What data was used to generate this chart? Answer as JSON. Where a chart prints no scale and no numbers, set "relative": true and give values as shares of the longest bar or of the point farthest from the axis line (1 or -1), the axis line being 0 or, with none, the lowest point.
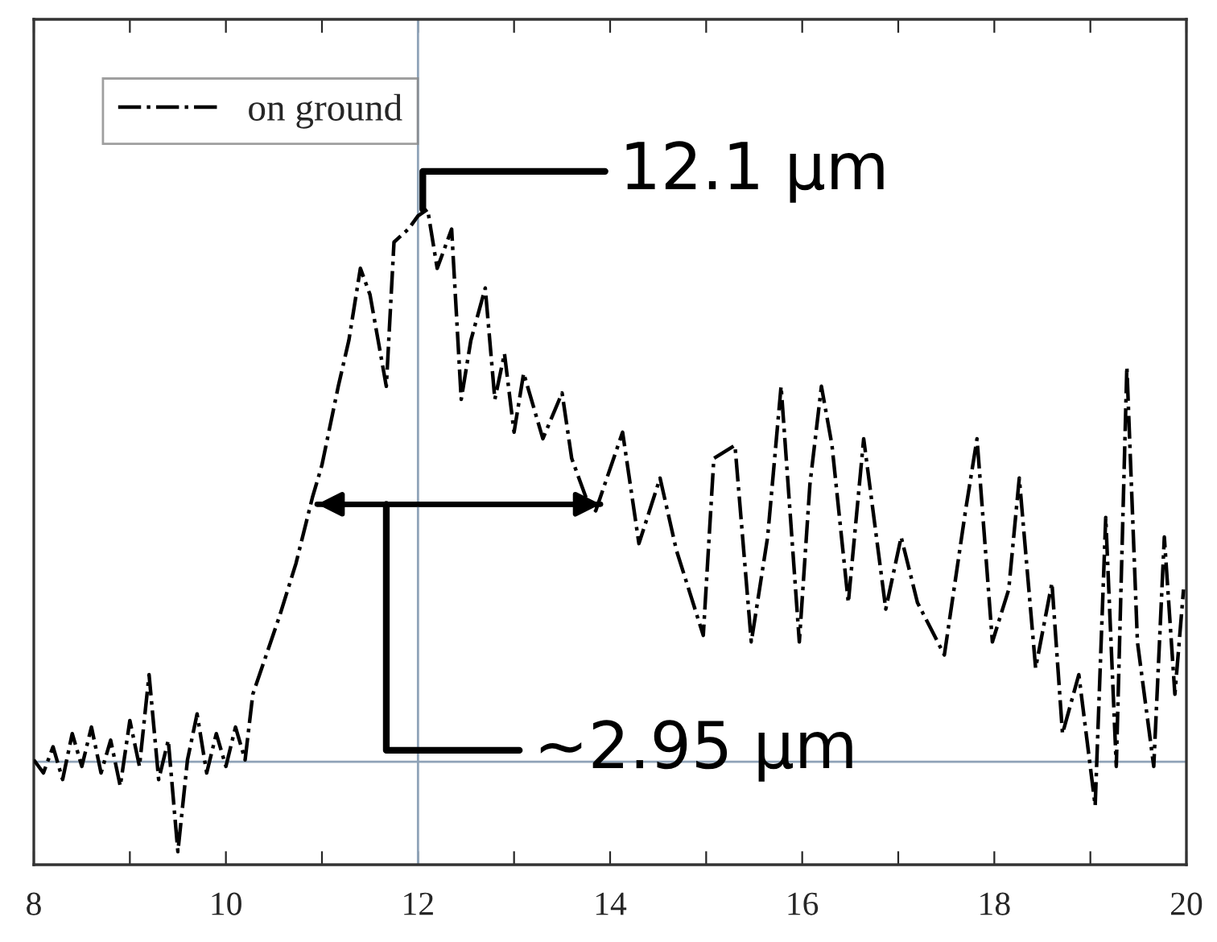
{
  "chart_data": {
    "type": "line",
    "relative": true,
    "xlim": [
      8,
      20
    ],
    "xticks": [
      8,
      {
        "value": 9,
        "label": null
      },
      10,
      {
        "value": 11,
        "label": null
      },
      12,
      {
        "value": 13,
        "label": null
      },
      14,
      {
        "value": 15,
        "label": null
      },
      16,
      {
        "value": 17,
        "label": null
      },
      18,
      {
        "value": 19,
        "label": null
      },
      20
    ],
    "series": [
      {
        "name": "on ground",
        "color": "#000000",
        "line_style": "dashdot",
        "x": [
          8.0,
          8.1,
          8.2,
          8.3,
          8.4,
          8.5,
          8.6,
          8.7,
          8.8,
          8.9,
          9.0,
          9.1,
          9.2,
          9.3,
          9.4,
          9.5,
          9.6,
          9.7,
          9.8,
          9.9,
          10.0,
          10.1,
          10.2,
          10.28,
          10.56,
          10.73,
          10.9,
          11.0,
          11.17,
          11.28,
          11.4,
          11.5,
          11.67,
          11.75,
          11.9,
          12.0,
          12.1,
          12.2,
          12.35,
          12.45,
          12.55,
          12.7,
          12.8,
          12.9,
          13.0,
          13.1,
          13.3,
          13.5,
          13.6,
          13.75,
          13.85,
          14.13,
          14.3,
          14.52,
          14.69,
          14.97,
          15.08,
          15.3,
          15.47,
          15.64,
          15.78,
          15.97,
          16.08,
          16.2,
          16.31,
          16.48,
          16.64,
          16.87,
          17.03,
          17.2,
          17.48,
          17.7,
          17.82,
          17.98,
          18.15,
          18.26,
          18.43,
          18.6,
          18.71,
          18.88,
          19.05,
          19.16,
          19.27,
          19.38,
          19.49,
          19.66,
          19.77,
          19.88,
          19.97
        ],
        "values": [
          0.16,
          0.14,
          0.18,
          0.13,
          0.2,
          0.15,
          0.21,
          0.14,
          0.19,
          0.12,
          0.22,
          0.15,
          0.29,
          0.13,
          0.19,
          0.02,
          0.16,
          0.23,
          0.14,
          0.2,
          0.15,
          0.21,
          0.16,
          0.26,
          0.38,
          0.46,
          0.56,
          0.61,
          0.73,
          0.8,
          0.91,
          0.87,
          0.73,
          0.95,
          0.97,
          0.99,
          1.0,
          0.91,
          0.97,
          0.71,
          0.8,
          0.88,
          0.71,
          0.78,
          0.66,
          0.75,
          0.65,
          0.72,
          0.62,
          0.56,
          0.54,
          0.66,
          0.49,
          0.59,
          0.48,
          0.35,
          0.62,
          0.64,
          0.34,
          0.5,
          0.73,
          0.34,
          0.58,
          0.73,
          0.64,
          0.4,
          0.65,
          0.39,
          0.5,
          0.4,
          0.32,
          0.54,
          0.65,
          0.34,
          0.42,
          0.59,
          0.3,
          0.43,
          0.2,
          0.29,
          0.09,
          0.53,
          0.15,
          0.76,
          0.34,
          0.15,
          0.5,
          0.26,
          0.42
        ]
      },
      {
        "type": "line",
        "color": "#000000",
        "line_style": "solid",
        "x": [
          10.95,
          13.9
        ],
        "values": [
          0.55,
          0.55
        ]
      }
    ],
    "ref_lines": [
      {
        "axis": "x",
        "value": 12,
        "color": "#8fa3b8"
      },
      {
        "axis": "y",
        "value": 0.157,
        "color": "#8fa3b8"
      }
    ],
    "annotations": [
      {
        "text": "12.1 μm",
        "x": 12.05,
        "y": 1.0
      },
      {
        "text": "~2.95 μm",
        "x": 11.67,
        "y": 0.55
      }
    ],
    "legend": "top left",
    "grid": false
  }
}
